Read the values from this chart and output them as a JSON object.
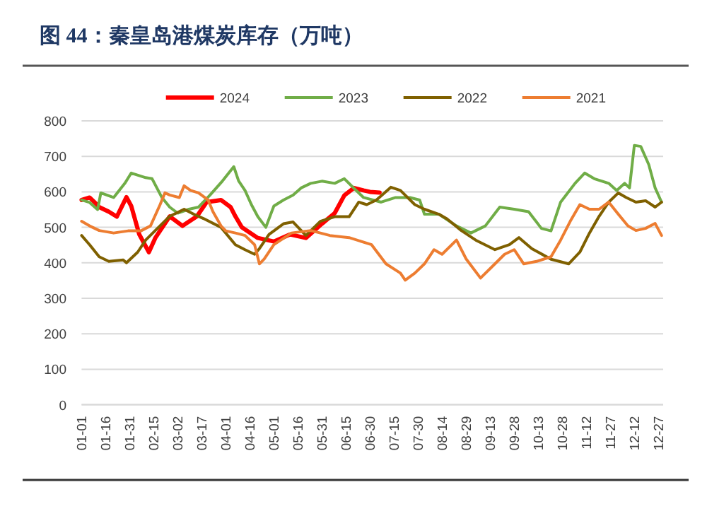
{
  "chart_data": {
    "type": "line",
    "title": "图 44：秦皇岛港煤炭库存（万吨）",
    "legend": "top",
    "grid": "y",
    "line_style": "solid",
    "marker": "none",
    "xlim": [
      "--01-01",
      "--12-30"
    ],
    "xticks": [
      {
        "value": "--01-01",
        "label": "01-01"
      },
      {
        "value": "--01-16",
        "label": "01-16"
      },
      {
        "value": "--01-31",
        "label": "01-31"
      },
      {
        "value": "--02-15",
        "label": "02-15"
      },
      {
        "value": "--03-02",
        "label": "03-02"
      },
      {
        "value": "--03-17",
        "label": "03-17"
      },
      {
        "value": "--04-01",
        "label": "04-01"
      },
      {
        "value": "--04-16",
        "label": "04-16"
      },
      {
        "value": "--05-01",
        "label": "05-01"
      },
      {
        "value": "--05-16",
        "label": "05-16"
      },
      {
        "value": "--05-31",
        "label": "05-31"
      },
      {
        "value": "--06-15",
        "label": "06-15"
      },
      {
        "value": "--06-30",
        "label": "06-30"
      },
      {
        "value": "--07-15",
        "label": "07-15"
      },
      {
        "value": "--07-30",
        "label": "07-30"
      },
      {
        "value": "--08-14",
        "label": "08-14"
      },
      {
        "value": "--08-29",
        "label": "08-29"
      },
      {
        "value": "--09-13",
        "label": "09-13"
      },
      {
        "value": "--09-28",
        "label": "09-28"
      },
      {
        "value": "--10-13",
        "label": "10-13"
      },
      {
        "value": "--10-28",
        "label": "10-28"
      },
      {
        "value": "--11-12",
        "label": "11-12"
      },
      {
        "value": "--11-27",
        "label": "11-27"
      },
      {
        "value": "--12-12",
        "label": "12-12"
      },
      {
        "value": "--12-27",
        "label": "12-27"
      }
    ],
    "ylim": [
      0,
      800
    ],
    "yticks": [
      0,
      100,
      200,
      300,
      400,
      500,
      600,
      700,
      800
    ],
    "series": [
      {
        "name": "2024",
        "color": "#ff0000",
        "x": [
          "--01-01",
          "--01-06",
          "--01-09",
          "--01-12",
          "--01-18",
          "--01-23",
          "--01-29",
          "--02-01",
          "--02-06",
          "--02-12",
          "--02-16",
          "--02-25",
          "--03-05",
          "--03-14",
          "--03-20",
          "--03-29",
          "--04-04",
          "--04-07",
          "--04-11",
          "--04-21",
          "--05-01",
          "--05-11",
          "--05-21",
          "--05-31",
          "--06-08",
          "--06-14",
          "--06-20",
          "--06-26",
          "--06-30",
          "--07-06"
        ],
        "values": [
          577,
          584,
          571,
          557,
          544,
          530,
          585,
          560,
          480,
          430,
          470,
          531,
          504,
          531,
          571,
          577,
          557,
          531,
          500,
          470,
          460,
          480,
          470,
          510,
          540,
          590,
          611,
          604,
          600,
          598
        ]
      },
      {
        "name": "2023",
        "color": "#70ad47",
        "x": [
          "--01-01",
          "--01-06",
          "--01-11",
          "--01-13",
          "--01-21",
          "--01-28",
          "--02-01",
          "--02-10",
          "--02-14",
          "--02-20",
          "--02-25",
          "--03-02",
          "--03-09",
          "--03-15",
          "--03-22",
          "--03-30",
          "--04-06",
          "--04-09",
          "--04-13",
          "--04-17",
          "--04-21",
          "--04-26",
          "--05-01",
          "--05-07",
          "--05-13",
          "--05-18",
          "--05-24",
          "--05-31",
          "--06-08",
          "--06-14",
          "--06-20",
          "--06-26",
          "--07-07",
          "--07-16",
          "--07-25",
          "--07-31",
          "--08-03",
          "--08-12",
          "--08-23",
          "--09-01",
          "--09-10",
          "--09-19",
          "--09-28",
          "--10-07",
          "--10-15",
          "--10-21",
          "--10-27",
          "--11-05",
          "--11-11",
          "--11-17",
          "--11-26",
          "--12-01",
          "--12-06",
          "--12-09",
          "--12-12",
          "--12-16",
          "--12-21",
          "--12-25",
          "--12-29"
        ],
        "values": [
          577,
          570,
          550,
          597,
          584,
          624,
          653,
          640,
          637,
          585,
          557,
          540,
          551,
          557,
          590,
          631,
          671,
          631,
          604,
          564,
          530,
          500,
          560,
          577,
          591,
          611,
          624,
          630,
          624,
          637,
          610,
          584,
          571,
          584,
          584,
          577,
          537,
          537,
          504,
          484,
          504,
          557,
          551,
          544,
          497,
          490,
          571,
          624,
          653,
          637,
          624,
          604,
          624,
          611,
          731,
          728,
          677,
          611,
          571
        ]
      },
      {
        "name": "2022",
        "color": "#7f6000",
        "x": [
          "--01-01",
          "--01-06",
          "--01-12",
          "--01-18",
          "--01-27",
          "--01-29",
          "--02-05",
          "--02-10",
          "--02-16",
          "--02-25",
          "--03-06",
          "--03-12",
          "--03-18",
          "--03-29",
          "--04-07",
          "--04-13",
          "--04-19",
          "--04-22",
          "--04-28",
          "--05-07",
          "--05-13",
          "--05-21",
          "--05-30",
          "--06-08",
          "--06-17",
          "--06-23",
          "--06-28",
          "--07-04",
          "--07-13",
          "--07-19",
          "--07-28",
          "--08-03",
          "--08-12",
          "--08-17",
          "--08-26",
          "--09-04",
          "--09-16",
          "--09-25",
          "--10-01",
          "--10-09",
          "--10-21",
          "--11-01",
          "--11-08",
          "--11-14",
          "--11-20",
          "--11-26",
          "--12-02",
          "--12-07",
          "--12-13",
          "--12-19",
          "--12-25",
          "--12-29"
        ],
        "values": [
          477,
          451,
          417,
          404,
          408,
          400,
          430,
          464,
          491,
          531,
          551,
          537,
          525,
          500,
          451,
          437,
          424,
          440,
          480,
          510,
          515,
          477,
          517,
          530,
          530,
          571,
          564,
          577,
          613,
          604,
          564,
          551,
          537,
          524,
          491,
          464,
          437,
          451,
          471,
          440,
          410,
          397,
          430,
          484,
          531,
          571,
          597,
          584,
          571,
          575,
          557,
          571
        ]
      },
      {
        "name": "2021",
        "color": "#ed7d31",
        "x": [
          "--01-01",
          "--01-06",
          "--01-12",
          "--01-21",
          "--01-30",
          "--02-07",
          "--02-13",
          "--02-19",
          "--02-22",
          "--02-25",
          "--03-03",
          "--03-06",
          "--03-10",
          "--03-15",
          "--03-21",
          "--03-24",
          "--03-29",
          "--04-01",
          "--04-07",
          "--04-13",
          "--04-19",
          "--04-22",
          "--04-25",
          "--05-01",
          "--05-12",
          "--05-24",
          "--06-05",
          "--06-17",
          "--07-01",
          "--07-10",
          "--07-19",
          "--07-22",
          "--07-28",
          "--08-03",
          "--08-09",
          "--08-14",
          "--08-23",
          "--08-29",
          "--09-07",
          "--09-16",
          "--09-22",
          "--09-28",
          "--10-04",
          "--10-12",
          "--10-21",
          "--10-27",
          "--11-02",
          "--11-08",
          "--11-14",
          "--11-20",
          "--11-26",
          "--12-02",
          "--12-08",
          "--12-13",
          "--12-19",
          "--12-25",
          "--12-29"
        ],
        "values": [
          517,
          504,
          491,
          484,
          490,
          490,
          504,
          564,
          597,
          591,
          584,
          617,
          604,
          597,
          577,
          544,
          504,
          490,
          484,
          477,
          451,
          397,
          411,
          451,
          484,
          491,
          477,
          471,
          451,
          397,
          371,
          351,
          371,
          397,
          437,
          424,
          464,
          411,
          357,
          397,
          424,
          437,
          397,
          404,
          417,
          464,
          517,
          564,
          551,
          551,
          571,
          537,
          504,
          491,
          497,
          511,
          477
        ]
      }
    ]
  }
}
